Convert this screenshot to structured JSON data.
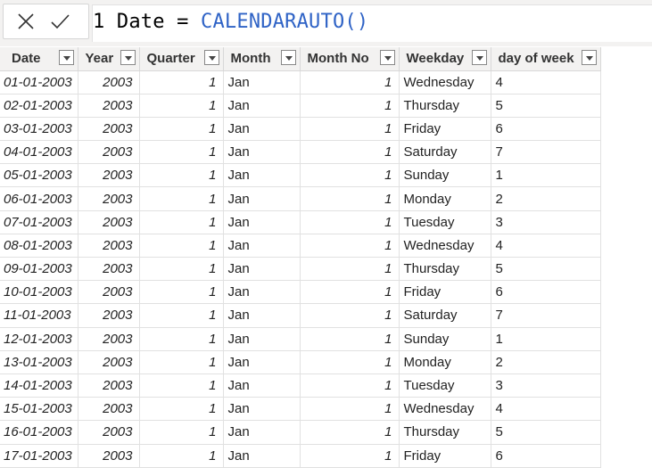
{
  "formula_bar": {
    "line_number": "1",
    "column_name": "Date",
    "operator": "=",
    "function_name": "CALENDARAUTO",
    "open_paren": "(",
    "close_paren": ")",
    "cancel_icon": "close-icon",
    "commit_icon": "check-icon"
  },
  "table": {
    "columns": [
      "Date",
      "Year",
      "Quarter",
      "Month",
      "Month No",
      "Weekday",
      "day of week"
    ],
    "rows": [
      [
        "01-01-2003",
        "2003",
        "1",
        "Jan",
        "1",
        "Wednesday",
        "4"
      ],
      [
        "02-01-2003",
        "2003",
        "1",
        "Jan",
        "1",
        "Thursday",
        "5"
      ],
      [
        "03-01-2003",
        "2003",
        "1",
        "Jan",
        "1",
        "Friday",
        "6"
      ],
      [
        "04-01-2003",
        "2003",
        "1",
        "Jan",
        "1",
        "Saturday",
        "7"
      ],
      [
        "05-01-2003",
        "2003",
        "1",
        "Jan",
        "1",
        "Sunday",
        "1"
      ],
      [
        "06-01-2003",
        "2003",
        "1",
        "Jan",
        "1",
        "Monday",
        "2"
      ],
      [
        "07-01-2003",
        "2003",
        "1",
        "Jan",
        "1",
        "Tuesday",
        "3"
      ],
      [
        "08-01-2003",
        "2003",
        "1",
        "Jan",
        "1",
        "Wednesday",
        "4"
      ],
      [
        "09-01-2003",
        "2003",
        "1",
        "Jan",
        "1",
        "Thursday",
        "5"
      ],
      [
        "10-01-2003",
        "2003",
        "1",
        "Jan",
        "1",
        "Friday",
        "6"
      ],
      [
        "11-01-2003",
        "2003",
        "1",
        "Jan",
        "1",
        "Saturday",
        "7"
      ],
      [
        "12-01-2003",
        "2003",
        "1",
        "Jan",
        "1",
        "Sunday",
        "1"
      ],
      [
        "13-01-2003",
        "2003",
        "1",
        "Jan",
        "1",
        "Monday",
        "2"
      ],
      [
        "14-01-2003",
        "2003",
        "1",
        "Jan",
        "1",
        "Tuesday",
        "3"
      ],
      [
        "15-01-2003",
        "2003",
        "1",
        "Jan",
        "1",
        "Wednesday",
        "4"
      ],
      [
        "16-01-2003",
        "2003",
        "1",
        "Jan",
        "1",
        "Thursday",
        "5"
      ],
      [
        "17-01-2003",
        "2003",
        "1",
        "Jan",
        "1",
        "Friday",
        "6"
      ]
    ]
  }
}
